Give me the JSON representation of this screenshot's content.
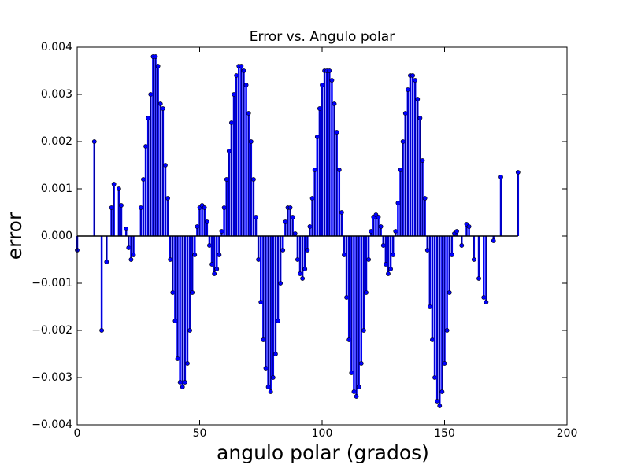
{
  "chart_data": {
    "type": "stem",
    "title": "Error vs. Angulo polar",
    "xlabel": "angulo polar (grados)",
    "ylabel": "error",
    "color": "#0000ff",
    "baseline_color": "#000000",
    "xlim": [
      0,
      200
    ],
    "xticks": [
      0,
      50,
      100,
      150,
      200
    ],
    "ylim": [
      -0.004,
      0.004
    ],
    "yticks": [
      {
        "value": -0.004,
        "label": "−0.004"
      },
      {
        "value": -0.003,
        "label": "−0.003"
      },
      {
        "value": -0.002,
        "label": "−0.002"
      },
      {
        "value": -0.001,
        "label": "−0.001"
      },
      {
        "value": 0,
        "label": "0.000"
      },
      0.001,
      0.002,
      0.003,
      0.004
    ],
    "x": [
      0,
      7,
      10,
      12,
      14,
      15,
      17,
      18,
      20,
      21,
      22,
      23,
      26,
      27,
      28,
      29,
      30,
      31,
      32,
      33,
      34,
      35,
      36,
      37,
      38,
      39,
      40,
      41,
      42,
      43,
      44,
      45,
      46,
      47,
      48,
      49,
      50,
      51,
      52,
      53,
      54,
      55,
      56,
      57,
      58,
      59,
      60,
      61,
      62,
      63,
      64,
      65,
      66,
      67,
      68,
      69,
      70,
      71,
      72,
      73,
      74,
      75,
      76,
      77,
      78,
      79,
      80,
      81,
      82,
      83,
      84,
      85,
      86,
      87,
      88,
      89,
      90,
      91,
      92,
      93,
      94,
      95,
      96,
      97,
      98,
      99,
      100,
      101,
      102,
      103,
      104,
      105,
      106,
      107,
      108,
      109,
      110,
      111,
      112,
      113,
      114,
      115,
      116,
      117,
      118,
      119,
      120,
      121,
      122,
      123,
      124,
      125,
      126,
      127,
      128,
      129,
      130,
      131,
      132,
      133,
      134,
      135,
      136,
      137,
      138,
      139,
      140,
      141,
      142,
      143,
      144,
      145,
      146,
      147,
      148,
      149,
      150,
      151,
      152,
      153,
      154,
      155,
      157,
      159,
      160,
      162,
      164,
      166,
      167,
      170,
      173,
      180
    ],
    "values": [
      -0.0003,
      0.002,
      -0.002,
      -0.00055,
      0.0006,
      0.0011,
      0.001,
      0.00065,
      0.00015,
      -0.00025,
      -0.0005,
      -0.0004,
      0.0006,
      0.0012,
      0.0019,
      0.0025,
      0.003,
      0.0038,
      0.0038,
      0.0036,
      0.0028,
      0.0027,
      0.0015,
      0.0008,
      -0.0005,
      -0.0012,
      -0.0018,
      -0.0026,
      -0.0031,
      -0.0032,
      -0.0031,
      -0.0027,
      -0.002,
      -0.0012,
      -0.0004,
      0.0002,
      0.0006,
      0.00065,
      0.0006,
      0.0003,
      -0.0002,
      -0.0006,
      -0.0008,
      -0.0007,
      -0.0004,
      0.0001,
      0.0006,
      0.0012,
      0.0018,
      0.0024,
      0.003,
      0.0034,
      0.0036,
      0.0036,
      0.0035,
      0.0032,
      0.0026,
      0.002,
      0.0012,
      0.0004,
      -0.0005,
      -0.0014,
      -0.0022,
      -0.0028,
      -0.0032,
      -0.0033,
      -0.003,
      -0.0025,
      -0.0018,
      -0.001,
      -0.0003,
      0.0003,
      0.0006,
      0.0006,
      0.0004,
      5e-05,
      -0.0005,
      -0.0008,
      -0.0009,
      -0.0007,
      -0.0003,
      0.0002,
      0.0008,
      0.0014,
      0.0021,
      0.0027,
      0.0032,
      0.0035,
      0.0035,
      0.0035,
      0.0033,
      0.0028,
      0.0022,
      0.0014,
      0.0005,
      -0.0004,
      -0.0013,
      -0.0022,
      -0.0029,
      -0.0033,
      -0.0034,
      -0.0032,
      -0.0027,
      -0.002,
      -0.0012,
      -0.0005,
      0.0001,
      0.0004,
      0.00045,
      0.0004,
      0.0002,
      -0.0002,
      -0.0006,
      -0.0008,
      -0.0007,
      -0.0004,
      0.0001,
      0.0007,
      0.0014,
      0.002,
      0.0026,
      0.0031,
      0.0034,
      0.0034,
      0.0033,
      0.0029,
      0.0025,
      0.0016,
      0.0008,
      -0.0003,
      -0.0015,
      -0.0022,
      -0.003,
      -0.0035,
      -0.0036,
      -0.0033,
      -0.0027,
      -0.002,
      -0.0012,
      -0.0004,
      5e-05,
      0.0001,
      -0.0002,
      0.00025,
      0.0002,
      -0.0005,
      -0.0009,
      -0.0013,
      -0.0014,
      -0.0001,
      0.00125,
      0.00135
    ]
  }
}
